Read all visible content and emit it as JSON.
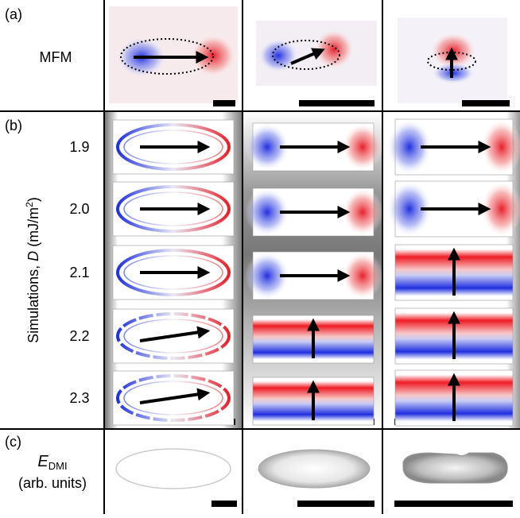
{
  "panel_a": {
    "label": "(a)",
    "row_label": "MFM"
  },
  "panel_b": {
    "label": "(b)",
    "axis_label": {
      "prefix": "Simulations, ",
      "symbol": "D",
      "unit_start": " (mJ/m",
      "unit_power": "2",
      "unit_end": ")"
    },
    "rows": [
      "1.9",
      "2.0",
      "2.1",
      "2.2",
      "2.3"
    ]
  },
  "panel_c": {
    "label": "(c)",
    "symbol": "E",
    "subscript": "DMI",
    "unit": "(arb. units)"
  }
}
